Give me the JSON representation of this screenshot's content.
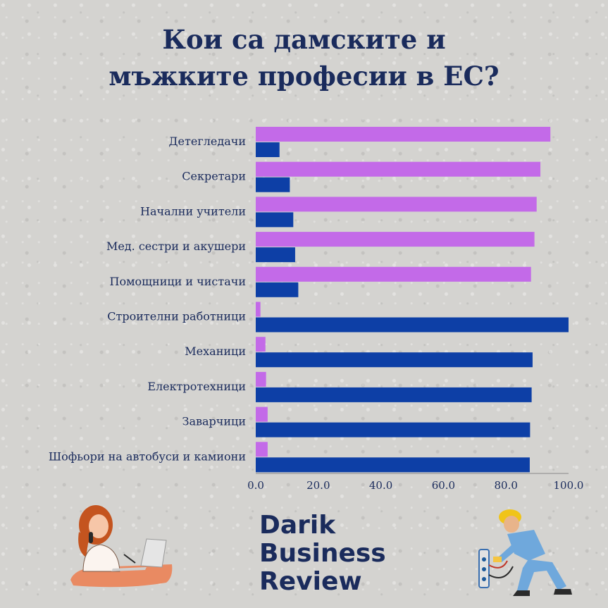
{
  "title": "Кои са дамските и\nмъжките професии в ЕС?",
  "brand": {
    "line1": "Darik",
    "line2": "Business",
    "line3": "Review"
  },
  "illustrations": {
    "left": "woman-at-laptop-icon",
    "right": "electrician-worker-icon"
  },
  "colors": {
    "women": "#c36ae8",
    "men": "#0d3fa6",
    "text": "#1a2b5c"
  },
  "chart_data": {
    "type": "bar",
    "orientation": "horizontal",
    "title": "Кои са дамските и мъжките професии в ЕС?",
    "categories": [
      "Детегледачи",
      "Секретари",
      "Начални учители",
      "Мед. сестри и акушери",
      "Помощници и чистачи",
      "Строителни работници",
      "Механици",
      "Електротехници",
      "Заварчици",
      "Шофьори на автобуси и камиони"
    ],
    "series": [
      {
        "values": [
          94.2,
          91.0,
          89.8,
          89.1,
          88.0,
          1.5,
          3.1,
          3.3,
          3.8,
          3.8
        ]
      },
      {
        "values": [
          7.6,
          10.9,
          12.0,
          12.6,
          13.6,
          100.0,
          88.5,
          88.2,
          87.7,
          87.6
        ]
      }
    ],
    "xlim": [
      0,
      100
    ],
    "xticks": [
      "0.0",
      "20.0",
      "40.0",
      "60.0",
      "80.0",
      "100.0"
    ],
    "grid": false,
    "legend": "none"
  }
}
